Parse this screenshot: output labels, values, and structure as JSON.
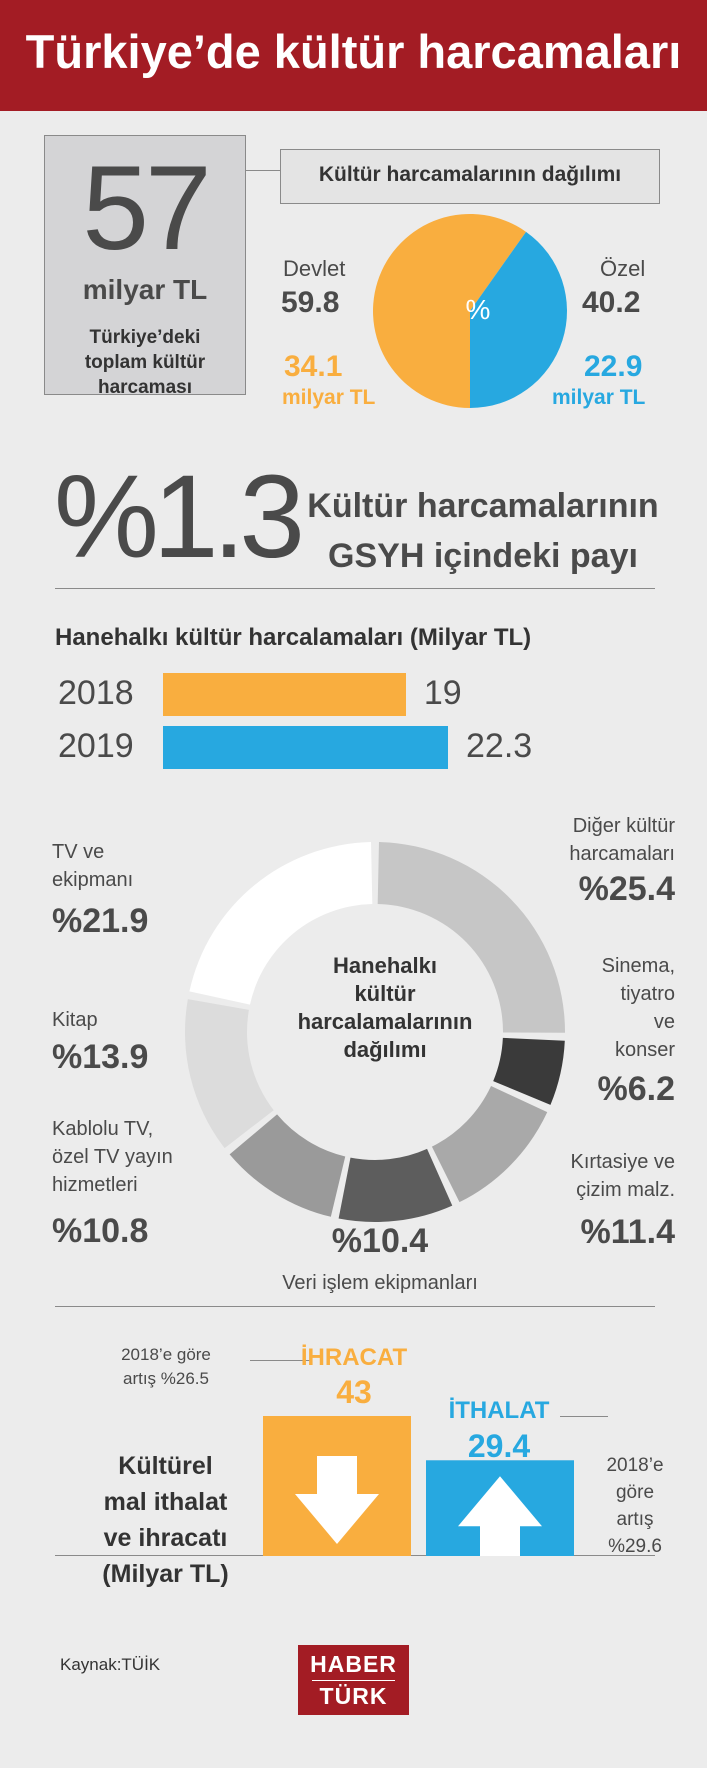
{
  "title": "Türkiye’de kültür harcamaları",
  "total": {
    "value": "57",
    "unit": "milyar TL",
    "caption": "Türkiye’deki toplam kültür harcaması"
  },
  "distribution": {
    "title": "Kültür harcamalarının dağılımı",
    "center_symbol": "%",
    "devlet": {
      "label": "Devlet",
      "pct": "59.8",
      "amount": "34.1",
      "unit": "milyar TL",
      "color": "#f9ae3f"
    },
    "ozel": {
      "label": "Özel",
      "pct": "40.2",
      "amount": "22.9",
      "unit": "milyar TL",
      "color": "#27a8e0"
    }
  },
  "gdp_share": {
    "value": "%1.3",
    "caption_line1": "Kültür harcamalarının",
    "caption_line2": "GSYH içindeki payı"
  },
  "household": {
    "title": "Hanehalkı kültür harcalamaları (Milyar TL)",
    "bars": [
      {
        "year": "2018",
        "value": 19,
        "label": "19",
        "color": "#f9ae3f"
      },
      {
        "year": "2019",
        "value": 22.3,
        "label": "22.3",
        "color": "#27a8e0"
      }
    ]
  },
  "breakdown": {
    "center_line1": "Hanehalkı",
    "center_line2": "kültür",
    "center_line3": "harcalamalarının",
    "center_line4": "dağılımı",
    "items": [
      {
        "label_1": "Diğer kültür",
        "label_2": "harcamaları",
        "pct_text": "%25.4",
        "value": 25.4,
        "color": "#c6c6c6"
      },
      {
        "label_1": "Sinema,",
        "label_2": "tiyatro",
        "label_3": "ve",
        "label_4": "konser",
        "pct_text": "%6.2",
        "value": 6.2,
        "color": "#3a3a3a"
      },
      {
        "label_1": "Kırtasiye ve",
        "label_2": "çizim malz.",
        "pct_text": "%11.4",
        "value": 11.4,
        "color": "#a9a9a9"
      },
      {
        "label_1": "Veri işlem ekipmanları",
        "pct_text": "%10.4",
        "value": 10.4,
        "color": "#5d5d5d"
      },
      {
        "label_1": "Kablolu TV,",
        "label_2": "özel TV yayın",
        "label_3": "hizmetleri",
        "pct_text": "%10.8",
        "value": 10.8,
        "color": "#9a9a9a"
      },
      {
        "label_1": "Kitap",
        "pct_text": "%13.9",
        "value": 13.9,
        "color": "#dcdcdc"
      },
      {
        "label_1": "TV ve",
        "label_2": "ekipmanı",
        "pct_text": "%21.9",
        "value": 21.9,
        "color": "#ffffff"
      }
    ]
  },
  "trade": {
    "title_1": "Kültürel",
    "title_2": "mal ithalat",
    "title_3": "ve ihracatı",
    "title_4": "(Milyar TL)",
    "export": {
      "label": "İHRACAT",
      "value": 43,
      "value_text": "43",
      "note_1": "2018’e göre",
      "note_2": "artış %26.5",
      "color": "#f9ae3f"
    },
    "import": {
      "label": "İTHALAT",
      "value": 29.4,
      "value_text": "29.4",
      "note_1": "2018’e",
      "note_2": "göre",
      "note_3": "artış",
      "note_4": "%29.6",
      "color": "#27a8e0"
    }
  },
  "source": "Kaynak:TÜİK",
  "logo": {
    "line1": "HABER",
    "line2": "TÜRK"
  },
  "chart_data": [
    {
      "type": "pie",
      "title": "Kültür harcamalarının dağılımı",
      "categories": [
        "Devlet",
        "Özel"
      ],
      "values": [
        59.8,
        40.2
      ],
      "amounts": [
        34.1,
        22.9
      ]
    },
    {
      "type": "bar",
      "title": "Hanehalkı kültür harcalamaları (Milyar TL)",
      "categories": [
        "2018",
        "2019"
      ],
      "values": [
        19,
        22.3
      ]
    },
    {
      "type": "pie",
      "title": "Hanehalkı kültür harcalamalarının dağılımı",
      "categories": [
        "Diğer kültür harcamaları",
        "Sinema, tiyatro ve konser",
        "Kırtasiye ve çizim malz.",
        "Veri işlem ekipmanları",
        "Kablolu TV, özel TV yayın hizmetleri",
        "Kitap",
        "TV ve ekipmanı"
      ],
      "values": [
        25.4,
        6.2,
        11.4,
        10.4,
        10.8,
        13.9,
        21.9
      ]
    },
    {
      "type": "bar",
      "title": "Kültürel mal ithalat ve ihracatı (Milyar TL)",
      "categories": [
        "İHRACAT",
        "İTHALAT"
      ],
      "values": [
        43,
        29.4
      ]
    }
  ]
}
